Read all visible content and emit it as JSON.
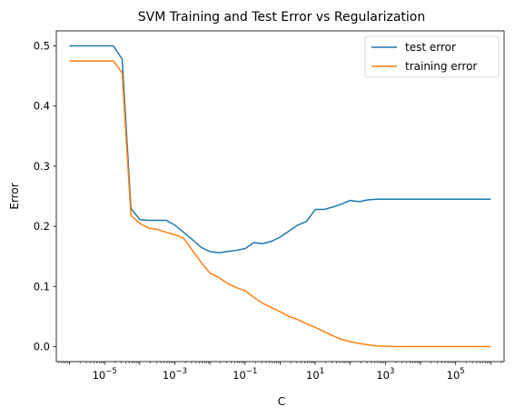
{
  "chart_data": {
    "type": "line",
    "title": "SVM Training and Test Error vs Regularization",
    "xlabel": "C",
    "ylabel": "Error",
    "xscale": "log",
    "xlim": [
      4.2e-07,
      2400000.0
    ],
    "ylim": [
      -0.025,
      0.525
    ],
    "grid": false,
    "legend_position": "top-right",
    "x_ticks": [
      {
        "value": 1e-05,
        "base": "10",
        "exp": "−5"
      },
      {
        "value": 0.001,
        "base": "10",
        "exp": "−3"
      },
      {
        "value": 0.1,
        "base": "10",
        "exp": "−1"
      },
      {
        "value": 10,
        "base": "10",
        "exp": "1"
      },
      {
        "value": 1000,
        "base": "10",
        "exp": "3"
      },
      {
        "value": 100000,
        "base": "10",
        "exp": "5"
      }
    ],
    "y_ticks": [
      {
        "value": 0.0,
        "label": "0.0"
      },
      {
        "value": 0.1,
        "label": "0.1"
      },
      {
        "value": 0.2,
        "label": "0.2"
      },
      {
        "value": 0.3,
        "label": "0.3"
      },
      {
        "value": 0.4,
        "label": "0.4"
      },
      {
        "value": 0.5,
        "label": "0.5"
      }
    ],
    "x": [
      1e-06,
      1.78e-06,
      3.16e-06,
      5.62e-06,
      1e-05,
      1.78e-05,
      3.16e-05,
      5.62e-05,
      0.0001,
      0.000178,
      0.000316,
      0.000562,
      0.001,
      0.00178,
      0.00316,
      0.00562,
      0.01,
      0.0178,
      0.0316,
      0.0562,
      0.1,
      0.178,
      0.316,
      0.562,
      1,
      1.78,
      3.16,
      5.62,
      10,
      17.8,
      31.6,
      56.2,
      100,
      178,
      316,
      562,
      1000,
      1780,
      3160,
      5620,
      10000,
      17800,
      31600,
      56200,
      100000,
      178000,
      316000,
      562000,
      1000000
    ],
    "series": [
      {
        "name": "test error",
        "color": "#1f77b4",
        "values": [
          0.5,
          0.5,
          0.5,
          0.5,
          0.5,
          0.5,
          0.478,
          0.23,
          0.211,
          0.21,
          0.21,
          0.21,
          0.202,
          0.19,
          0.178,
          0.165,
          0.158,
          0.156,
          0.158,
          0.16,
          0.163,
          0.173,
          0.171,
          0.175,
          0.182,
          0.192,
          0.202,
          0.208,
          0.228,
          0.228,
          0.232,
          0.237,
          0.243,
          0.241,
          0.244,
          0.245,
          0.245,
          0.245,
          0.245,
          0.245,
          0.245,
          0.245,
          0.245,
          0.245,
          0.245,
          0.245,
          0.245,
          0.245,
          0.245
        ]
      },
      {
        "name": "training error",
        "color": "#ff7f0e",
        "values": [
          0.475,
          0.475,
          0.475,
          0.475,
          0.475,
          0.475,
          0.455,
          0.218,
          0.205,
          0.197,
          0.195,
          0.19,
          0.186,
          0.18,
          0.16,
          0.14,
          0.122,
          0.115,
          0.105,
          0.098,
          0.093,
          0.082,
          0.072,
          0.065,
          0.058,
          0.05,
          0.045,
          0.038,
          0.032,
          0.025,
          0.018,
          0.012,
          0.008,
          0.005,
          0.003,
          0.001,
          0.0005,
          0.0,
          0.0,
          0.0,
          0.0,
          0.0,
          0.0,
          0.0,
          0.0,
          0.0,
          0.0,
          0.0,
          0.0
        ]
      }
    ]
  }
}
